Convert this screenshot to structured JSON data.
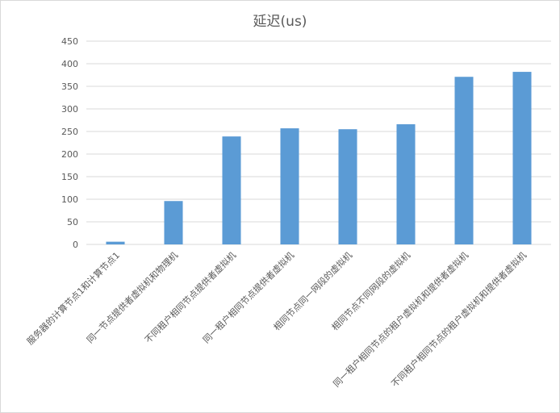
{
  "chart_data": {
    "type": "bar",
    "title": "延迟(us)",
    "xlabel": "",
    "ylabel": "",
    "ylim": [
      0,
      450
    ],
    "yticks": [
      0,
      50,
      100,
      150,
      200,
      250,
      300,
      350,
      400,
      450
    ],
    "grid": true,
    "legend": "none",
    "bar_color": "#5b9bd5",
    "categories": [
      "服务器的计算节点1和计算节点1",
      "同一节点提供者虚拟机和物理机",
      "不同租户相同节点提供者虚拟机",
      "同一租户相同节点提供者虚拟机",
      "相同节点同一网段的虚拟机",
      "相同节点不同网段的虚拟机",
      "同一租户相同节点的租户虚拟机和提供者虚拟机",
      "不同租户相同节点的租户虚拟机和提供者虚拟机"
    ],
    "values": [
      6,
      96,
      239,
      257,
      255,
      266,
      371,
      382
    ]
  }
}
